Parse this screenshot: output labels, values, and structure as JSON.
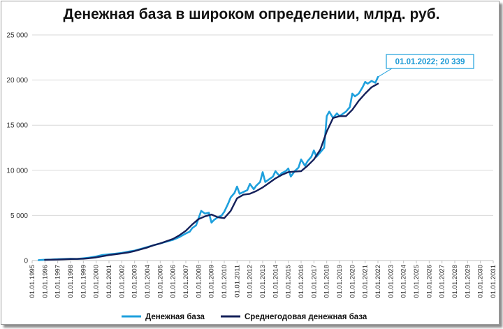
{
  "chart_data": {
    "type": "line",
    "title": "Денежная база в широком определении, млрд. руб.",
    "ylim": [
      0,
      25000
    ],
    "yticks": [
      0,
      5000,
      10000,
      15000,
      20000,
      25000
    ],
    "ytick_labels": [
      "0",
      "5 000",
      "10 000",
      "15 000",
      "20 000",
      "25 000"
    ],
    "x_tick_labels": [
      "01.01.1995",
      "01.01.1996",
      "01.01.1997",
      "01.01.1998",
      "01.01.1999",
      "01.01.2000",
      "01.01.2001",
      "01.01.2002",
      "01.01.2003",
      "01.01.2004",
      "01.01.2005",
      "01.01.2006",
      "01.01.2007",
      "01.01.2008",
      "01.01.2009",
      "01.01.2010",
      "01.01.2011",
      "01.01.2012",
      "01.01.2013",
      "01.01.2014",
      "01.01.2015",
      "01.01.2016",
      "01.01.2017",
      "01.01.2018",
      "01.01.2019",
      "01.01.2020",
      "01.01.2021",
      "01.01.2022",
      "01.01.2023",
      "01.01.2024",
      "01.01.2025",
      "01.01.2026",
      "01.01.2027",
      "01.01.2028",
      "01.01.2029",
      "01.01.2030",
      "01.01.2031"
    ],
    "xlim": [
      1995,
      2031
    ],
    "legend_position": "bottom",
    "series": [
      {
        "name": "Денежная база",
        "color": "#1ea0dd",
        "x": [
          1995.5,
          1996,
          1996.5,
          1997,
          1997.5,
          1998,
          1998.5,
          1999,
          1999.5,
          2000,
          2000.5,
          2001,
          2001.5,
          2002,
          2002.5,
          2003,
          2003.5,
          2004,
          2004.5,
          2005,
          2005.5,
          2006,
          2006.5,
          2007,
          2007.3,
          2007.5,
          2007.8,
          2008,
          2008.2,
          2008.5,
          2008.8,
          2009,
          2009.2,
          2009.5,
          2009.8,
          2010,
          2010.3,
          2010.5,
          2010.8,
          2011,
          2011.2,
          2011.5,
          2011.8,
          2012,
          2012.3,
          2012.5,
          2012.8,
          2013,
          2013.2,
          2013.5,
          2013.8,
          2014,
          2014.3,
          2014.5,
          2014.8,
          2015,
          2015.2,
          2015.5,
          2015.8,
          2016,
          2016.3,
          2016.5,
          2016.8,
          2017,
          2017.2,
          2017.5,
          2017.8,
          2018,
          2018.2,
          2018.5,
          2018.8,
          2019,
          2019.2,
          2019.5,
          2019.8,
          2020,
          2020.2,
          2020.5,
          2020.8,
          2021,
          2021.2,
          2021.5,
          2021.8,
          2022
        ],
        "y": [
          50,
          90,
          110,
          150,
          170,
          200,
          180,
          250,
          330,
          450,
          620,
          700,
          760,
          850,
          980,
          1100,
          1300,
          1500,
          1700,
          1900,
          2100,
          2300,
          2600,
          3000,
          3200,
          3600,
          3900,
          4700,
          5500,
          5200,
          5300,
          4200,
          4500,
          4800,
          5000,
          5400,
          6300,
          7000,
          7500,
          8200,
          7400,
          7600,
          7800,
          8500,
          7900,
          8300,
          8700,
          9800,
          8700,
          9000,
          9300,
          9900,
          9400,
          9700,
          9900,
          10200,
          9300,
          9900,
          10300,
          11200,
          10500,
          11000,
          11500,
          12200,
          11500,
          12000,
          12500,
          16000,
          16500,
          15800,
          16300,
          16000,
          16200,
          16500,
          17000,
          18500,
          18200,
          18500,
          19200,
          19800,
          19600,
          19900,
          19700,
          20339
        ]
      },
      {
        "name": "Среднегодовая денежная база",
        "color": "#14205a",
        "x": [
          1996,
          1996.5,
          1997,
          1997.5,
          1998,
          1998.5,
          1999,
          1999.5,
          2000,
          2000.5,
          2001,
          2001.5,
          2002,
          2002.5,
          2003,
          2003.5,
          2004,
          2004.5,
          2005,
          2005.5,
          2006,
          2006.5,
          2007,
          2007.5,
          2008,
          2008.5,
          2009,
          2009.5,
          2010,
          2010.5,
          2011,
          2011.5,
          2012,
          2012.5,
          2013,
          2013.5,
          2014,
          2014.5,
          2015,
          2015.5,
          2016,
          2016.5,
          2017,
          2017.5,
          2018,
          2018.5,
          2019,
          2019.5,
          2020,
          2020.5,
          2021,
          2021.5,
          2022
        ],
        "y": [
          70,
          90,
          110,
          140,
          170,
          180,
          200,
          260,
          350,
          480,
          600,
          700,
          790,
          900,
          1050,
          1250,
          1450,
          1700,
          1900,
          2150,
          2400,
          2800,
          3300,
          4000,
          4600,
          4900,
          5100,
          4800,
          4700,
          5500,
          6900,
          7300,
          7400,
          7700,
          8100,
          8600,
          9100,
          9500,
          9800,
          9850,
          9900,
          10500,
          11200,
          12300,
          14300,
          15800,
          16000,
          16000,
          16700,
          17700,
          18500,
          19200,
          19600
        ]
      }
    ],
    "annotations": [
      {
        "text": "01.01.2022;  20 339",
        "x": 2022,
        "y": 20339,
        "color": "#1ea0dd"
      }
    ]
  }
}
